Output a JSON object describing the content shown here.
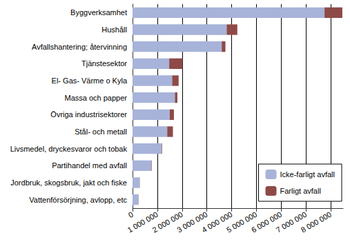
{
  "chart_data": {
    "type": "bar",
    "orientation": "horizontal",
    "stacked": true,
    "categories": [
      "Byggverksamhet",
      "Hushåll",
      "Avfallshantering; återvinning",
      "Tjänstesektor",
      "El- Gas- Värme o Kyla",
      "Massa och papper",
      "Övriga industrisektorer",
      "Stål- och metall",
      "Livsmedel, dryckesvaror och tobak",
      "Partihandel med avfall",
      "Jordbruk, skogsbruk, jakt och fiske",
      "Vattenförsörjning, avlopp, etc"
    ],
    "series": [
      {
        "name": "Icke-farligt avfall",
        "color": "#a7b3d9",
        "values": [
          7750000,
          3800000,
          3600000,
          1480000,
          1600000,
          1710000,
          1500000,
          1400000,
          1170000,
          750000,
          280000,
          230000
        ]
      },
      {
        "name": "Farligt avfall",
        "color": "#8e4a47",
        "values": [
          720000,
          430000,
          150000,
          540000,
          260000,
          100000,
          170000,
          230000,
          20000,
          20000,
          10000,
          10000
        ]
      }
    ],
    "xlim": [
      0,
      8500000
    ],
    "xticks": [
      0,
      {
        "value": 1000000,
        "label": "1 000 000"
      },
      {
        "value": 2000000,
        "label": "2 000 000"
      },
      {
        "value": 3000000,
        "label": "3 000 000"
      },
      {
        "value": 4000000,
        "label": "4 000 000"
      },
      {
        "value": 5000000,
        "label": "5 000 000"
      },
      {
        "value": 6000000,
        "label": "6 000 000"
      },
      {
        "value": 7000000,
        "label": "7 000 000"
      },
      {
        "value": 8000000,
        "label": "8 000 000"
      }
    ],
    "grid": true,
    "legend": "lower right"
  }
}
